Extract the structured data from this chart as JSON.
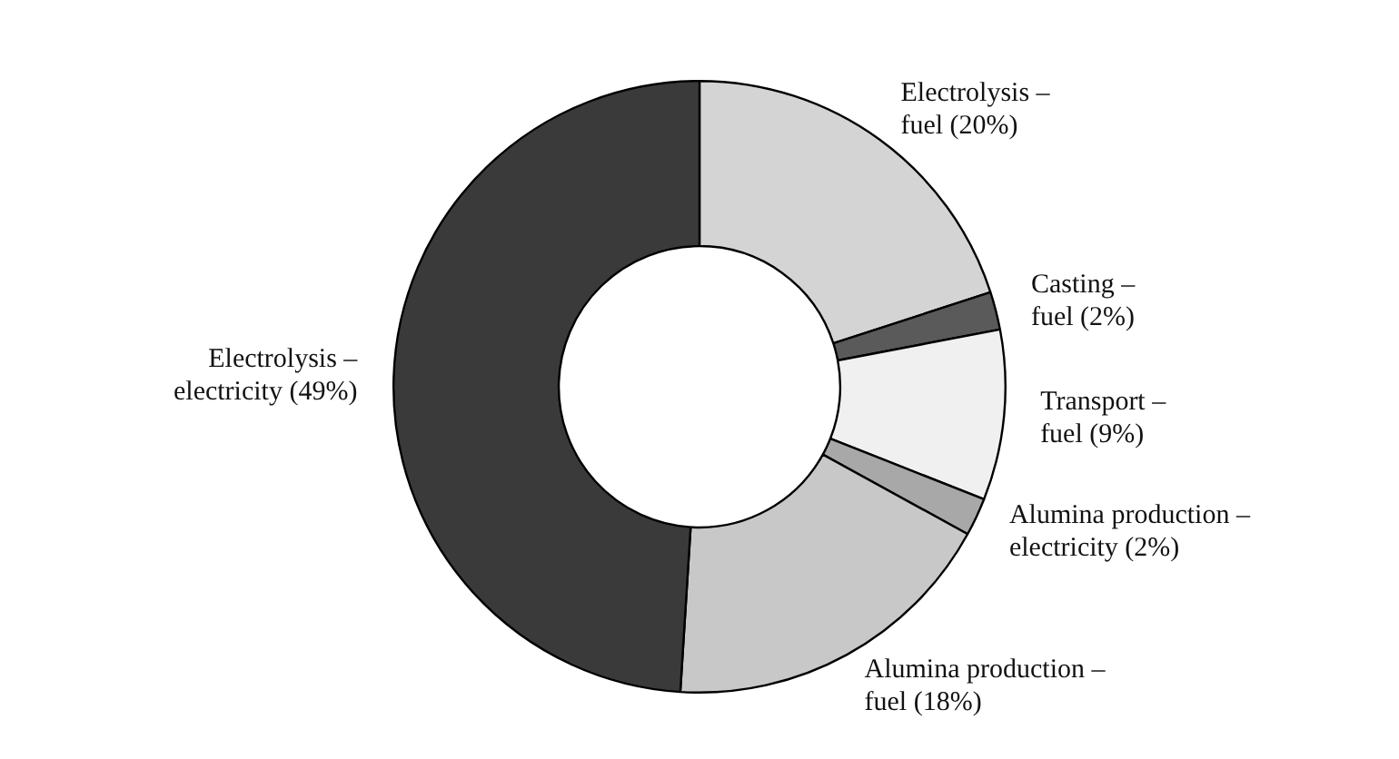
{
  "chart_data": {
    "type": "donut",
    "categories": [
      "Electrolysis – fuel (20%)",
      "Casting – fuel (2%)",
      "Transport – fuel (9%)",
      "Alumina production – electricity (2%)",
      "Alumina production – fuel (18%)",
      "Electrolysis – electricity (49%)"
    ],
    "values": [
      20,
      2,
      9,
      2,
      18,
      49
    ],
    "colors": [
      "#d4d4d4",
      "#5a5a5a",
      "#f0f0f0",
      "#a8a8a8",
      "#c8c8c8",
      "#3a3a3a"
    ]
  }
}
